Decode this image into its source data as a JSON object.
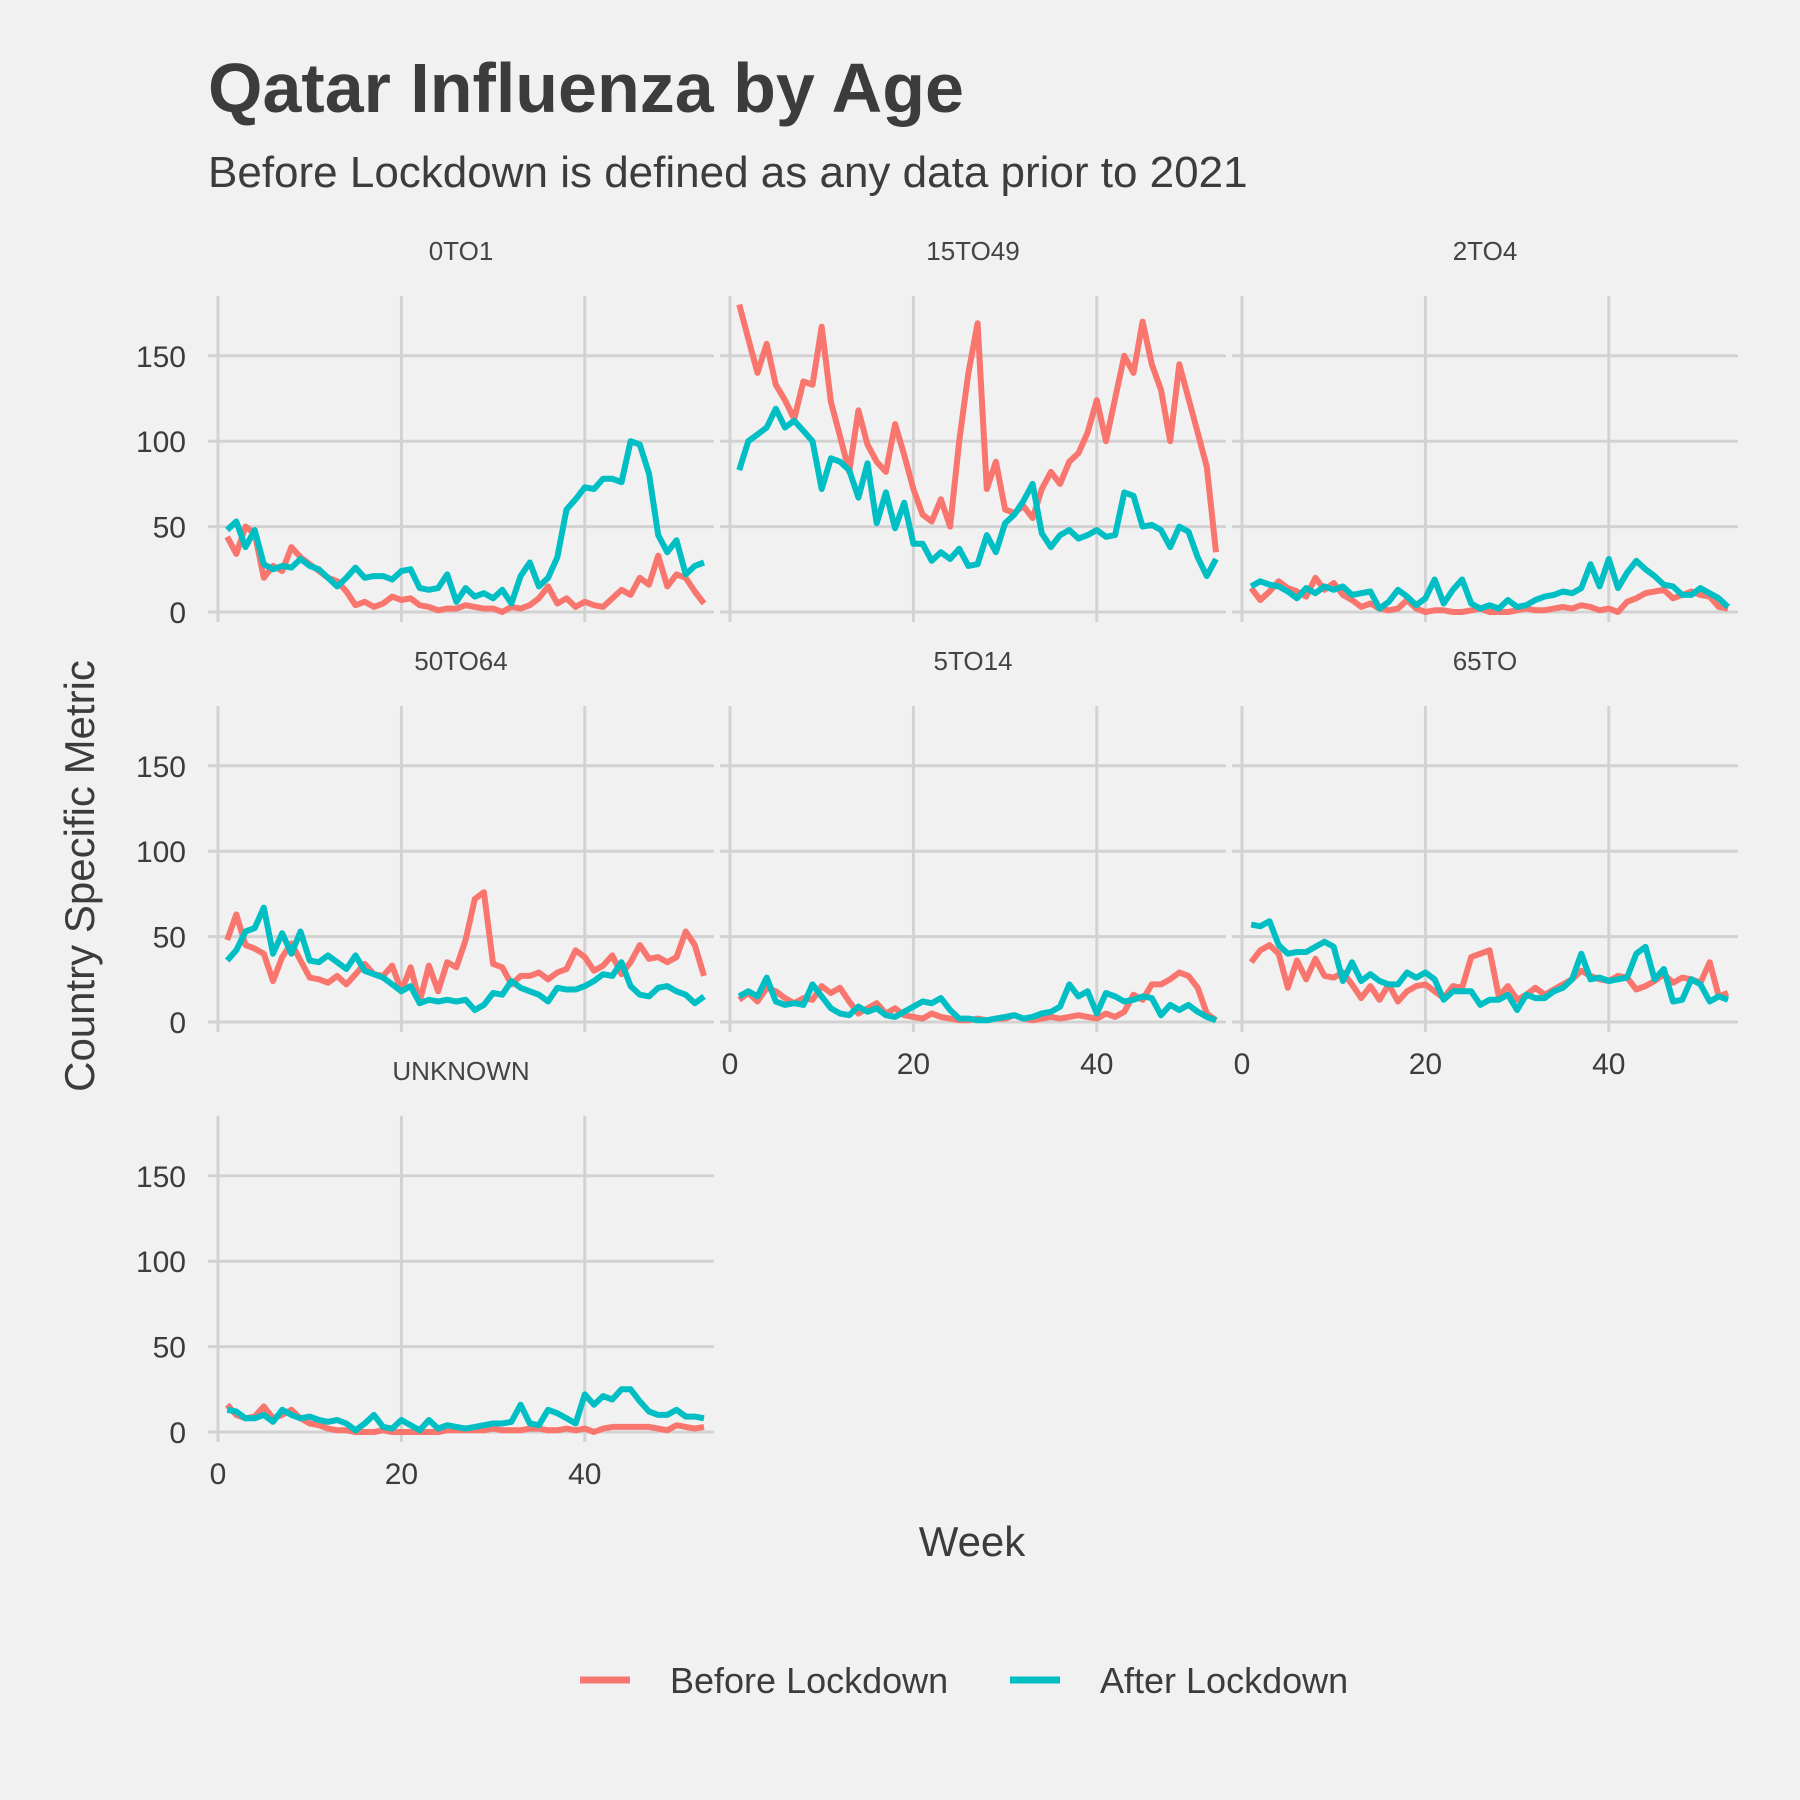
{
  "chart_data": {
    "type": "line",
    "title": "Qatar Influenza by Age",
    "subtitle": "Before Lockdown is defined as any data prior to 2021",
    "xlabel": "Week",
    "ylabel": "Country Specific Metric",
    "xlim": [
      0,
      53
    ],
    "ylim": [
      0,
      185
    ],
    "x_ticks": [
      0,
      20,
      40
    ],
    "y_ticks": [
      0,
      50,
      100,
      150
    ],
    "grid": true,
    "legend_position": "bottom",
    "colors": {
      "Before Lockdown": "#F8766D",
      "After Lockdown": "#00BFC4"
    },
    "legend": [
      "Before Lockdown",
      "After Lockdown"
    ],
    "facets": [
      {
        "label": "0TO1",
        "series": [
          {
            "name": "Before Lockdown",
            "values": [
              44,
              34,
              50,
              46,
              20,
              27,
              24,
              38,
              32,
              28,
              24,
              20,
              18,
              12,
              4,
              6,
              3,
              5,
              9,
              7,
              8,
              4,
              3,
              1,
              2,
              2,
              4,
              3,
              2,
              2,
              0,
              3,
              2,
              4,
              8,
              15,
              5,
              8,
              3,
              6,
              4,
              3,
              8,
              13,
              10,
              20,
              16,
              33,
              15,
              22,
              20,
              12,
              5
            ]
          },
          {
            "name": "After Lockdown",
            "values": [
              48,
              53,
              38,
              48,
              28,
              25,
              27,
              26,
              31,
              27,
              25,
              20,
              15,
              20,
              26,
              20,
              21,
              21,
              19,
              24,
              25,
              14,
              13,
              14,
              22,
              6,
              14,
              9,
              11,
              8,
              13,
              5,
              21,
              29,
              15,
              20,
              32,
              60,
              66,
              73,
              72,
              78,
              78,
              76,
              100,
              98,
              81,
              45,
              35,
              42,
              22,
              27,
              29
            ]
          }
        ]
      },
      {
        "label": "15TO49",
        "series": [
          {
            "name": "Before Lockdown",
            "values": [
              180,
              160,
              140,
              157,
              133,
              124,
              113,
              135,
              133,
              167,
              123,
              103,
              82,
              118,
              98,
              88,
              82,
              110,
              92,
              72,
              57,
              53,
              66,
              50,
              100,
              140,
              169,
              72,
              88,
              60,
              58,
              62,
              55,
              72,
              82,
              75,
              88,
              93,
              105,
              124,
              100,
              125,
              150,
              140,
              170,
              145,
              130,
              100,
              145,
              125,
              105,
              85,
              35
            ]
          },
          {
            "name": "After Lockdown",
            "values": [
              83,
              100,
              104,
              108,
              119,
              108,
              112,
              106,
              100,
              72,
              90,
              88,
              83,
              67,
              87,
              52,
              70,
              49,
              64,
              40,
              40,
              30,
              35,
              31,
              37,
              27,
              28,
              45,
              35,
              52,
              57,
              65,
              75,
              46,
              38,
              45,
              48,
              43,
              45,
              48,
              44,
              45,
              70,
              68,
              50,
              51,
              48,
              38,
              50,
              47,
              32,
              21,
              31
            ]
          }
        ]
      },
      {
        "label": "2TO4",
        "series": [
          {
            "name": "Before Lockdown",
            "values": [
              14,
              7,
              12,
              18,
              14,
              12,
              9,
              20,
              13,
              17,
              10,
              7,
              3,
              5,
              2,
              1,
              2,
              7,
              2,
              0,
              1,
              1,
              0,
              0,
              1,
              2,
              0,
              0,
              0,
              1,
              2,
              1,
              1,
              2,
              3,
              2,
              4,
              3,
              1,
              2,
              0,
              6,
              8,
              11,
              12,
              13,
              8,
              10,
              12,
              10,
              9,
              3,
              2
            ]
          },
          {
            "name": "After Lockdown",
            "values": [
              15,
              18,
              16,
              15,
              12,
              8,
              14,
              11,
              15,
              13,
              15,
              10,
              11,
              12,
              2,
              6,
              13,
              9,
              4,
              8,
              19,
              5,
              13,
              19,
              5,
              2,
              4,
              2,
              7,
              3,
              4,
              7,
              9,
              10,
              12,
              11,
              14,
              28,
              15,
              31,
              14,
              23,
              30,
              25,
              21,
              16,
              15,
              10,
              10,
              14,
              11,
              8,
              3
            ]
          }
        ]
      },
      {
        "label": "50TO64",
        "series": [
          {
            "name": "Before Lockdown",
            "values": [
              48,
              63,
              45,
              43,
              40,
              24,
              38,
              46,
              36,
              26,
              25,
              23,
              27,
              22,
              28,
              34,
              28,
              27,
              33,
              18,
              32,
              12,
              33,
              18,
              35,
              32,
              48,
              72,
              76,
              34,
              32,
              22,
              27,
              27,
              29,
              25,
              29,
              31,
              42,
              38,
              30,
              33,
              39,
              28,
              35,
              45,
              37,
              38,
              35,
              38,
              53,
              45,
              27
            ]
          },
          {
            "name": "After Lockdown",
            "values": [
              36,
              42,
              53,
              55,
              67,
              40,
              52,
              40,
              53,
              36,
              35,
              39,
              35,
              31,
              39,
              30,
              28,
              26,
              22,
              18,
              21,
              11,
              13,
              12,
              13,
              12,
              13,
              7,
              10,
              17,
              16,
              24,
              20,
              18,
              16,
              12,
              20,
              19,
              19,
              21,
              24,
              28,
              27,
              35,
              21,
              16,
              15,
              20,
              21,
              18,
              16,
              11,
              15
            ]
          }
        ]
      },
      {
        "label": "5TO14",
        "series": [
          {
            "name": "Before Lockdown",
            "values": [
              13,
              17,
              12,
              20,
              18,
              14,
              11,
              14,
              13,
              21,
              17,
              20,
              12,
              5,
              8,
              11,
              5,
              8,
              4,
              3,
              2,
              5,
              3,
              2,
              1,
              1,
              2,
              1,
              2,
              2,
              4,
              2,
              1,
              2,
              3,
              2,
              3,
              4,
              3,
              2,
              5,
              3,
              6,
              16,
              13,
              22,
              22,
              25,
              29,
              27,
              20,
              5,
              1
            ]
          },
          {
            "name": "After Lockdown",
            "values": [
              15,
              18,
              15,
              26,
              12,
              10,
              11,
              10,
              22,
              15,
              8,
              5,
              4,
              9,
              6,
              8,
              4,
              3,
              6,
              9,
              12,
              11,
              14,
              7,
              2,
              2,
              1,
              1,
              2,
              3,
              4,
              2,
              3,
              5,
              6,
              9,
              22,
              15,
              18,
              5,
              17,
              15,
              12,
              13,
              15,
              14,
              4,
              10,
              7,
              10,
              6,
              3,
              1
            ]
          }
        ]
      },
      {
        "label": "65TO",
        "series": [
          {
            "name": "Before Lockdown",
            "values": [
              35,
              42,
              45,
              40,
              20,
              36,
              25,
              37,
              27,
              26,
              29,
              22,
              14,
              21,
              13,
              22,
              12,
              18,
              21,
              22,
              18,
              14,
              21,
              20,
              38,
              40,
              42,
              15,
              21,
              13,
              16,
              20,
              16,
              19,
              22,
              25,
              30,
              27,
              25,
              24,
              27,
              26,
              19,
              21,
              24,
              28,
              23,
              26,
              25,
              23,
              35,
              15,
              17
            ]
          },
          {
            "name": "After Lockdown",
            "values": [
              57,
              56,
              59,
              45,
              40,
              41,
              41,
              44,
              47,
              44,
              24,
              35,
              24,
              28,
              24,
              22,
              22,
              29,
              26,
              29,
              25,
              13,
              18,
              18,
              18,
              10,
              13,
              13,
              16,
              7,
              16,
              14,
              14,
              18,
              20,
              25,
              40,
              25,
              26,
              24,
              25,
              26,
              40,
              44,
              25,
              31,
              12,
              13,
              25,
              22,
              12,
              15,
              13
            ]
          }
        ]
      },
      {
        "label": "UNKNOWN",
        "series": [
          {
            "name": "Before Lockdown",
            "values": [
              16,
              10,
              8,
              9,
              15,
              8,
              10,
              13,
              8,
              5,
              4,
              2,
              1,
              1,
              0,
              0,
              0,
              1,
              0,
              0,
              0,
              0,
              0,
              0,
              1,
              1,
              1,
              1,
              1,
              2,
              1,
              1,
              1,
              2,
              2,
              1,
              1,
              2,
              1,
              2,
              0,
              2,
              3,
              3,
              3,
              3,
              3,
              2,
              1,
              4,
              3,
              2,
              3
            ]
          },
          {
            "name": "After Lockdown",
            "values": [
              13,
              12,
              8,
              8,
              10,
              6,
              13,
              10,
              8,
              9,
              7,
              6,
              7,
              5,
              1,
              5,
              10,
              3,
              2,
              7,
              4,
              1,
              7,
              2,
              4,
              3,
              2,
              3,
              4,
              5,
              5,
              6,
              16,
              5,
              4,
              13,
              11,
              8,
              5,
              22,
              16,
              21,
              19,
              25,
              25,
              18,
              12,
              10,
              10,
              13,
              9,
              9,
              8
            ]
          }
        ]
      }
    ]
  }
}
